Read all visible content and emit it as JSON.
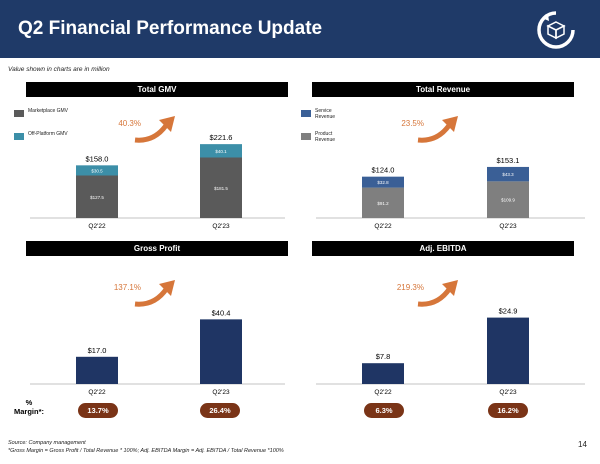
{
  "header": {
    "title": "Q2 Financial Performance Update",
    "logo_icon": "box-cycle-icon"
  },
  "note": "Value shown in charts are in million",
  "colors": {
    "navy": "#1f3a68",
    "dark_gray": "#5a5a5a",
    "teal": "#3c8fa8",
    "blue": "#3a5f96",
    "gray": "#7f7f7f",
    "bar_navy": "#1f3564",
    "arrow": "#d6763a",
    "pill": "#7a3417"
  },
  "chart_data": [
    {
      "type": "bar",
      "title": "Total GMV",
      "categories": [
        "Q2'22",
        "Q2'23"
      ],
      "series": [
        {
          "name": "Marketplace GMV",
          "values": [
            127.5,
            181.5
          ]
        },
        {
          "name": "Off-Platform GMV",
          "values": [
            30.5,
            40.1
          ]
        }
      ],
      "value_labels": [
        "$127.5",
        "$181.5"
      ],
      "value_labels_2": [
        "$30.5",
        "$40.1"
      ],
      "totals": [
        "$158.0",
        "$221.6"
      ],
      "total_values": [
        158.0,
        221.6
      ],
      "growth": "40.3%",
      "legend": [
        "Marketplace GMV",
        "Off-Platform GMV"
      ],
      "ylim": [
        0,
        240
      ]
    },
    {
      "type": "bar",
      "title": "Total Revenue",
      "categories": [
        "Q2'22",
        "Q2'23"
      ],
      "series": [
        {
          "name": "Product Revenue",
          "values": [
            91.2,
            109.9
          ]
        },
        {
          "name": "Service Revenue",
          "values": [
            32.8,
            43.3
          ]
        }
      ],
      "value_labels": [
        "$91.2",
        "$109.9"
      ],
      "value_labels_2": [
        "$32.8",
        "$43.3"
      ],
      "totals": [
        "$124.0",
        "$153.1"
      ],
      "total_values": [
        124.0,
        153.1
      ],
      "growth": "23.5%",
      "legend": [
        "Service Revenue",
        "Product Revenue"
      ],
      "ylim": [
        0,
        240
      ]
    },
    {
      "type": "bar",
      "title": "Gross Profit",
      "categories": [
        "Q2'22",
        "Q2'23"
      ],
      "values": [
        17.0,
        40.4
      ],
      "totals": [
        "$17.0",
        "$40.4"
      ],
      "growth": "137.1%",
      "margins": [
        "13.7%",
        "26.4%"
      ],
      "ylim": [
        0,
        80
      ]
    },
    {
      "type": "bar",
      "title": "Adj. EBITDA",
      "categories": [
        "Q2'22",
        "Q2'23"
      ],
      "values": [
        7.8,
        24.9
      ],
      "totals": [
        "$7.8",
        "$24.9"
      ],
      "growth": "219.3%",
      "margins": [
        "6.3%",
        "16.2%"
      ],
      "ylim": [
        0,
        50
      ]
    }
  ],
  "margin_label": "%\nMargin*:",
  "margin_label_line1": "%",
  "margin_label_line2": "Margin*:",
  "footer": {
    "source": "Source: Company management",
    "definition": "*Gross Margin = Gross Profit / Total Revenue * 100%; Adj. EBITDA Margin = Adj. EBITDA / Total Revenue *100%",
    "page": "14"
  }
}
